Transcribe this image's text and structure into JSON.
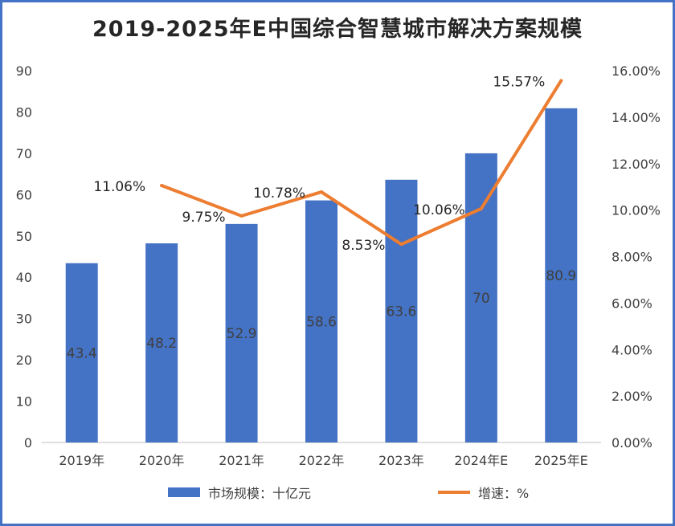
{
  "title": "2019-2025年E中国综合智慧城市解决方案规模",
  "colors": {
    "bar": "#4472c4",
    "line": "#ed7d31",
    "border": "#4472c4"
  },
  "chart_data": {
    "type": "bar",
    "categories": [
      "2019年",
      "2020年",
      "2021年",
      "2022年",
      "2023年",
      "2024年E",
      "2025年E"
    ],
    "series": [
      {
        "name": "市场规模：十亿元",
        "type": "bar",
        "axis": "left",
        "values": [
          43.4,
          48.2,
          52.9,
          58.6,
          63.6,
          70,
          80.9
        ],
        "labels": [
          "43.4",
          "48.2",
          "52.9",
          "58.6",
          "63.6",
          "70",
          "80.9"
        ]
      },
      {
        "name": "增速：%",
        "type": "line",
        "axis": "right",
        "x": [
          "2020年",
          "2021年",
          "2022年",
          "2023年",
          "2024年E",
          "2025年E"
        ],
        "values": [
          11.06,
          9.75,
          10.78,
          8.53,
          10.06,
          15.57
        ],
        "labels": [
          "11.06%",
          "9.75%",
          "10.78%",
          "8.53%",
          "10.06%",
          "15.57%"
        ]
      }
    ],
    "y_left": {
      "range": [
        0,
        90
      ],
      "ticks": [
        "0",
        "10",
        "20",
        "30",
        "40",
        "50",
        "60",
        "70",
        "80",
        "90"
      ]
    },
    "y_right": {
      "range": [
        0,
        16
      ],
      "ticks": [
        "0.00%",
        "2.00%",
        "4.00%",
        "6.00%",
        "8.00%",
        "10.00%",
        "12.00%",
        "14.00%",
        "16.00%"
      ]
    },
    "grid": false,
    "legend": "bottom"
  }
}
